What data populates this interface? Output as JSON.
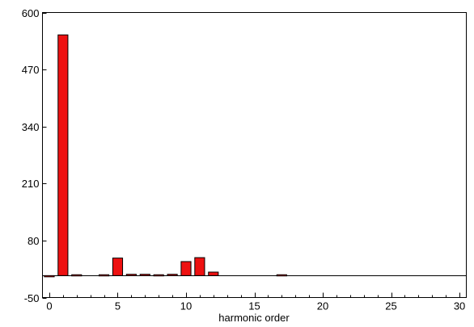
{
  "chart_data": {
    "type": "bar",
    "title": "",
    "xlabel": "harmonic order",
    "ylabel": "",
    "xlim": [
      -0.5,
      30.5
    ],
    "ylim": [
      -50,
      600
    ],
    "x_ticks": [
      0,
      5,
      10,
      15,
      20,
      25,
      30
    ],
    "y_ticks": [
      -50,
      80,
      210,
      340,
      470,
      600
    ],
    "x_tick_labels": [
      "0",
      "5",
      "10",
      "15",
      "20",
      "25",
      "30"
    ],
    "y_tick_labels": [
      "-50",
      "80",
      "210",
      "340",
      "470",
      "600"
    ],
    "x": [
      0,
      1,
      2,
      3,
      4,
      5,
      6,
      7,
      8,
      9,
      10,
      11,
      12,
      13,
      14,
      15,
      16,
      17,
      18,
      19,
      20,
      21,
      22,
      23,
      24,
      25,
      26,
      27,
      28,
      29,
      30
    ],
    "values": [
      -2,
      549,
      2,
      0,
      2,
      40,
      3,
      3,
      2,
      3,
      32,
      41,
      8,
      0,
      0,
      0,
      0,
      2,
      0,
      0,
      0,
      0,
      0,
      0,
      0,
      0,
      0,
      0,
      0,
      0,
      0
    ],
    "grid": false,
    "bar_color": "#ee1111",
    "edge_color": "#000000",
    "zero_line": true
  }
}
